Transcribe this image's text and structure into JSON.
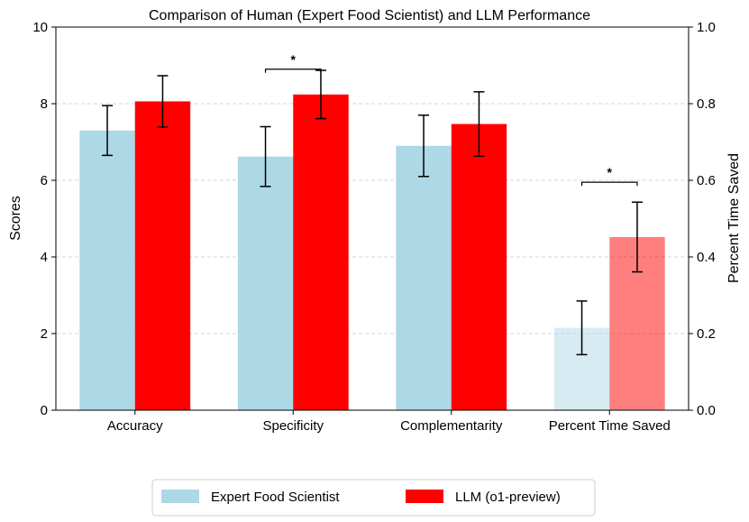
{
  "chart_data": {
    "type": "bar",
    "title": "Comparison of Human (Expert Food Scientist) and LLM Performance",
    "categories": [
      "Accuracy",
      "Specificity",
      "Complementarity",
      "Percent Time Saved"
    ],
    "ylabel": "Scores",
    "ylim": [
      0,
      10
    ],
    "yticks": [
      "0",
      "2",
      "4",
      "6",
      "8",
      "10"
    ],
    "y2label": "Percent Time Saved",
    "y2lim": [
      0,
      1.0
    ],
    "y2ticks": [
      "0.0",
      "0.2",
      "0.4",
      "0.6",
      "0.8",
      "1.0"
    ],
    "grid": "horizontal dashed",
    "legend_position": "bottom-center",
    "series": [
      {
        "name": "Expert Food Scientist",
        "color": "#add8e6",
        "values": [
          7.3,
          6.62,
          6.9,
          0.215
        ],
        "errors": [
          0.65,
          0.78,
          0.8,
          0.07
        ],
        "axis": [
          "left",
          "left",
          "left",
          "right"
        ],
        "alpha": [
          1,
          1,
          1,
          0.5
        ]
      },
      {
        "name": "LLM (o1-preview)",
        "color": "#ff0000",
        "values": [
          8.06,
          8.24,
          7.47,
          0.452
        ],
        "errors": [
          0.67,
          0.63,
          0.84,
          0.091
        ],
        "axis": [
          "left",
          "left",
          "left",
          "right"
        ],
        "alpha": [
          1,
          1,
          1,
          0.5
        ]
      }
    ],
    "annotations": [
      {
        "text": "*",
        "category": "Specificity",
        "bracket_value": 8.9,
        "axis": "left"
      },
      {
        "text": "*",
        "category": "Percent Time Saved",
        "bracket_value": 0.595,
        "axis": "right"
      }
    ]
  }
}
